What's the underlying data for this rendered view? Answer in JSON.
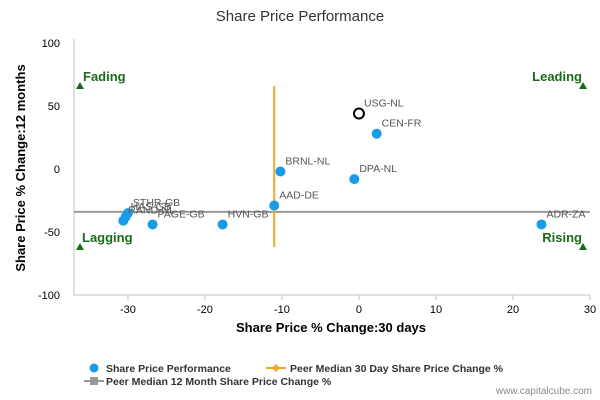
{
  "chart_data": {
    "type": "scatter",
    "title": "Share Price Performance",
    "xlabel": "Share Price % Change:30 days",
    "ylabel": "Share Price % Change:12 months",
    "xlim": [
      -37,
      30
    ],
    "ylim": [
      -100,
      100
    ],
    "xticks": [
      -30,
      -20,
      -10,
      0,
      10,
      20,
      30
    ],
    "yticks": [
      -100,
      -50,
      0,
      50,
      100
    ],
    "grid": false,
    "series": [
      {
        "name": "Share Price Performance",
        "color": "#1a9be6",
        "points": [
          {
            "label": "USG-NL",
            "x": 0,
            "y": 44,
            "highlight": true
          },
          {
            "label": "CEN-FR",
            "x": 2.3,
            "y": 28
          },
          {
            "label": "DPA-NL",
            "x": -0.6,
            "y": -8
          },
          {
            "label": "BRNL-NL",
            "x": -10.2,
            "y": -2
          },
          {
            "label": "AAD-DE",
            "x": -11.0,
            "y": -29
          },
          {
            "label": "HVN-GB",
            "x": -17.7,
            "y": -44
          },
          {
            "label": "PAGE-GB",
            "x": -26.8,
            "y": -44
          },
          {
            "label": "STHR-GB",
            "x": -30.0,
            "y": -35
          },
          {
            "label": "HAS-GB",
            "x": -30.3,
            "y": -38
          },
          {
            "label": "RAND-NL",
            "x": -30.6,
            "y": -41
          },
          {
            "label": "ADR-ZA",
            "x": 23.7,
            "y": -44
          }
        ]
      }
    ],
    "reference_lines": {
      "peer_median_30_day": {
        "name": "Peer Median 30 Day Share Price Change %",
        "x": -11.0,
        "y_range": [
          -62,
          66
        ],
        "color": "#f5a623"
      },
      "peer_median_12_month": {
        "name": "Peer Median 12 Month Share Price Change %",
        "y": -34,
        "color": "#999999"
      }
    },
    "quadrants": [
      {
        "label": "Fading",
        "position": "top-left"
      },
      {
        "label": "Leading",
        "position": "top-right"
      },
      {
        "label": "Lagging",
        "position": "bottom-left"
      },
      {
        "label": "Rising",
        "position": "bottom-right"
      }
    ],
    "quadrant_marker_color": "#1a6b1a",
    "legend": {
      "placement": "bottom-left",
      "items": [
        "Share Price Performance",
        "Peer Median 30 Day Share Price Change %",
        "Peer Median 12 Month Share Price Change %"
      ]
    }
  },
  "watermark": "www.capitalcube.com"
}
